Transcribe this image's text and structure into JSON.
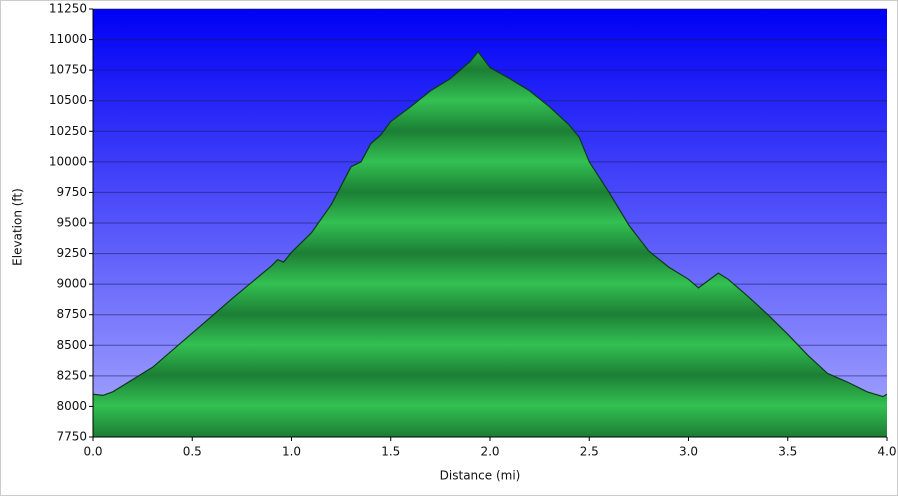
{
  "chart_data": {
    "type": "area",
    "x_label": "Distance (mi)",
    "y_label": "Elevation (ft)",
    "x": [
      0.0,
      0.05,
      0.1,
      0.2,
      0.3,
      0.5,
      0.7,
      0.9,
      0.93,
      0.96,
      1.0,
      1.1,
      1.2,
      1.3,
      1.35,
      1.4,
      1.45,
      1.5,
      1.6,
      1.7,
      1.8,
      1.9,
      1.94,
      2.0,
      2.1,
      2.2,
      2.3,
      2.4,
      2.45,
      2.5,
      2.6,
      2.7,
      2.8,
      2.9,
      3.0,
      3.05,
      3.1,
      3.15,
      3.2,
      3.3,
      3.4,
      3.5,
      3.6,
      3.7,
      3.8,
      3.9,
      3.98,
      4.0
    ],
    "series": [
      {
        "color": "#1f9a3c",
        "values": [
          8100,
          8090,
          8120,
          8220,
          8320,
          8600,
          8880,
          9150,
          9200,
          9180,
          9260,
          9420,
          9650,
          9960,
          10000,
          10150,
          10220,
          10330,
          10450,
          10580,
          10680,
          10820,
          10900,
          10770,
          10680,
          10580,
          10450,
          10300,
          10200,
          10000,
          9750,
          9480,
          9270,
          9140,
          9040,
          8970,
          9030,
          9090,
          9040,
          8900,
          8750,
          8590,
          8420,
          8270,
          8200,
          8120,
          8080,
          8100
        ]
      }
    ],
    "xlim": [
      0,
      4
    ],
    "xticks": [
      {
        "value": 0,
        "label": "0.0"
      },
      0.5,
      {
        "value": 1,
        "label": "1.0"
      },
      1.5,
      {
        "value": 2,
        "label": "2.0"
      },
      2.5,
      {
        "value": 3,
        "label": "3.0"
      },
      3.5,
      {
        "value": 4,
        "label": "4.0"
      }
    ],
    "ylim": [
      7750,
      11250
    ],
    "yticks": [
      7750,
      8000,
      8250,
      8500,
      8750,
      9000,
      9250,
      9500,
      9750,
      10000,
      10250,
      10500,
      10750,
      11000,
      11250
    ],
    "grid": true
  }
}
